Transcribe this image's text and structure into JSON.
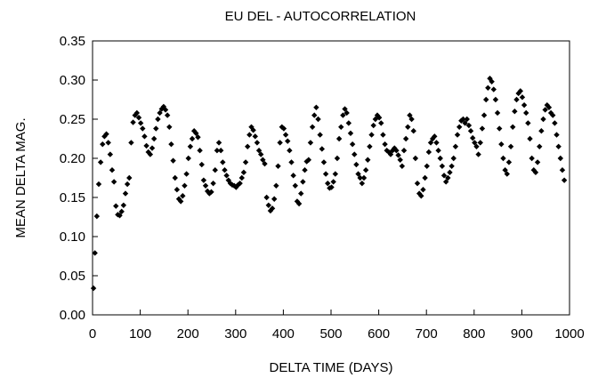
{
  "chart_data": {
    "type": "scatter",
    "title": "EU DEL - AUTOCORRELATION",
    "xlabel": "DELTA TIME (DAYS)",
    "ylabel": "MEAN DELTA MAG.",
    "xlim": [
      0,
      1000
    ],
    "ylim": [
      0,
      0.35
    ],
    "xticks": [
      "0",
      "100",
      "200",
      "300",
      "400",
      "500",
      "600",
      "700",
      "800",
      "900",
      "1000"
    ],
    "yticks": [
      "0.00",
      "0.05",
      "0.10",
      "0.15",
      "0.20",
      "0.25",
      "0.30",
      "0.35"
    ],
    "grid": false,
    "legend": "none",
    "marker": "diamond",
    "color": "#000000",
    "points": [
      [
        2,
        0.034
      ],
      [
        5,
        0.079
      ],
      [
        9,
        0.126
      ],
      [
        13,
        0.167
      ],
      [
        17,
        0.195
      ],
      [
        21,
        0.218
      ],
      [
        25,
        0.228
      ],
      [
        29,
        0.231
      ],
      [
        33,
        0.22
      ],
      [
        37,
        0.205
      ],
      [
        41,
        0.185
      ],
      [
        45,
        0.17
      ],
      [
        49,
        0.139
      ],
      [
        53,
        0.128
      ],
      [
        57,
        0.127
      ],
      [
        61,
        0.132
      ],
      [
        65,
        0.14
      ],
      [
        69,
        0.155
      ],
      [
        73,
        0.167
      ],
      [
        77,
        0.175
      ],
      [
        81,
        0.22
      ],
      [
        85,
        0.246
      ],
      [
        89,
        0.255
      ],
      [
        93,
        0.258
      ],
      [
        97,
        0.252
      ],
      [
        101,
        0.245
      ],
      [
        105,
        0.238
      ],
      [
        109,
        0.228
      ],
      [
        113,
        0.216
      ],
      [
        117,
        0.208
      ],
      [
        121,
        0.205
      ],
      [
        125,
        0.213
      ],
      [
        129,
        0.225
      ],
      [
        133,
        0.238
      ],
      [
        137,
        0.25
      ],
      [
        141,
        0.258
      ],
      [
        145,
        0.263
      ],
      [
        149,
        0.266
      ],
      [
        153,
        0.262
      ],
      [
        157,
        0.255
      ],
      [
        161,
        0.24
      ],
      [
        165,
        0.218
      ],
      [
        169,
        0.197
      ],
      [
        173,
        0.175
      ],
      [
        177,
        0.16
      ],
      [
        181,
        0.148
      ],
      [
        185,
        0.145
      ],
      [
        189,
        0.152
      ],
      [
        193,
        0.165
      ],
      [
        197,
        0.18
      ],
      [
        201,
        0.2
      ],
      [
        205,
        0.215
      ],
      [
        209,
        0.225
      ],
      [
        213,
        0.235
      ],
      [
        217,
        0.232
      ],
      [
        221,
        0.227
      ],
      [
        225,
        0.21
      ],
      [
        229,
        0.192
      ],
      [
        233,
        0.172
      ],
      [
        237,
        0.165
      ],
      [
        241,
        0.158
      ],
      [
        245,
        0.155
      ],
      [
        249,
        0.157
      ],
      [
        253,
        0.168
      ],
      [
        257,
        0.185
      ],
      [
        261,
        0.21
      ],
      [
        265,
        0.22
      ],
      [
        269,
        0.21
      ],
      [
        273,
        0.195
      ],
      [
        277,
        0.185
      ],
      [
        281,
        0.178
      ],
      [
        285,
        0.172
      ],
      [
        289,
        0.168
      ],
      [
        293,
        0.166
      ],
      [
        297,
        0.165
      ],
      [
        301,
        0.163
      ],
      [
        305,
        0.166
      ],
      [
        309,
        0.168
      ],
      [
        313,
        0.175
      ],
      [
        317,
        0.182
      ],
      [
        321,
        0.195
      ],
      [
        325,
        0.215
      ],
      [
        329,
        0.23
      ],
      [
        333,
        0.24
      ],
      [
        337,
        0.236
      ],
      [
        341,
        0.228
      ],
      [
        345,
        0.22
      ],
      [
        349,
        0.21
      ],
      [
        353,
        0.205
      ],
      [
        357,
        0.198
      ],
      [
        361,
        0.193
      ],
      [
        365,
        0.15
      ],
      [
        369,
        0.14
      ],
      [
        373,
        0.133
      ],
      [
        377,
        0.136
      ],
      [
        381,
        0.148
      ],
      [
        385,
        0.165
      ],
      [
        389,
        0.19
      ],
      [
        393,
        0.22
      ],
      [
        397,
        0.24
      ],
      [
        401,
        0.238
      ],
      [
        405,
        0.23
      ],
      [
        409,
        0.222
      ],
      [
        413,
        0.21
      ],
      [
        417,
        0.195
      ],
      [
        421,
        0.178
      ],
      [
        425,
        0.165
      ],
      [
        429,
        0.145
      ],
      [
        433,
        0.142
      ],
      [
        437,
        0.155
      ],
      [
        441,
        0.17
      ],
      [
        445,
        0.185
      ],
      [
        449,
        0.196
      ],
      [
        453,
        0.198
      ],
      [
        457,
        0.22
      ],
      [
        461,
        0.24
      ],
      [
        465,
        0.255
      ],
      [
        469,
        0.265
      ],
      [
        473,
        0.25
      ],
      [
        477,
        0.23
      ],
      [
        481,
        0.212
      ],
      [
        485,
        0.195
      ],
      [
        489,
        0.18
      ],
      [
        493,
        0.168
      ],
      [
        497,
        0.162
      ],
      [
        501,
        0.163
      ],
      [
        505,
        0.17
      ],
      [
        509,
        0.18
      ],
      [
        513,
        0.2
      ],
      [
        517,
        0.225
      ],
      [
        521,
        0.24
      ],
      [
        525,
        0.255
      ],
      [
        529,
        0.263
      ],
      [
        533,
        0.258
      ],
      [
        537,
        0.245
      ],
      [
        541,
        0.232
      ],
      [
        545,
        0.218
      ],
      [
        549,
        0.205
      ],
      [
        553,
        0.192
      ],
      [
        557,
        0.18
      ],
      [
        561,
        0.175
      ],
      [
        565,
        0.168
      ],
      [
        569,
        0.175
      ],
      [
        573,
        0.185
      ],
      [
        577,
        0.198
      ],
      [
        581,
        0.215
      ],
      [
        585,
        0.23
      ],
      [
        589,
        0.242
      ],
      [
        593,
        0.25
      ],
      [
        597,
        0.255
      ],
      [
        601,
        0.252
      ],
      [
        605,
        0.245
      ],
      [
        609,
        0.23
      ],
      [
        613,
        0.218
      ],
      [
        617,
        0.21
      ],
      [
        621,
        0.208
      ],
      [
        625,
        0.205
      ],
      [
        629,
        0.21
      ],
      [
        633,
        0.213
      ],
      [
        637,
        0.21
      ],
      [
        641,
        0.204
      ],
      [
        645,
        0.198
      ],
      [
        649,
        0.19
      ],
      [
        653,
        0.21
      ],
      [
        657,
        0.225
      ],
      [
        661,
        0.24
      ],
      [
        665,
        0.255
      ],
      [
        669,
        0.25
      ],
      [
        673,
        0.235
      ],
      [
        677,
        0.2
      ],
      [
        681,
        0.168
      ],
      [
        685,
        0.155
      ],
      [
        689,
        0.152
      ],
      [
        693,
        0.16
      ],
      [
        697,
        0.175
      ],
      [
        701,
        0.19
      ],
      [
        705,
        0.208
      ],
      [
        709,
        0.22
      ],
      [
        713,
        0.225
      ],
      [
        717,
        0.228
      ],
      [
        721,
        0.22
      ],
      [
        725,
        0.21
      ],
      [
        729,
        0.2
      ],
      [
        733,
        0.19
      ],
      [
        737,
        0.178
      ],
      [
        741,
        0.17
      ],
      [
        745,
        0.175
      ],
      [
        749,
        0.182
      ],
      [
        753,
        0.19
      ],
      [
        757,
        0.2
      ],
      [
        761,
        0.215
      ],
      [
        765,
        0.23
      ],
      [
        769,
        0.24
      ],
      [
        773,
        0.248
      ],
      [
        777,
        0.25
      ],
      [
        781,
        0.245
      ],
      [
        785,
        0.25
      ],
      [
        789,
        0.242
      ],
      [
        793,
        0.235
      ],
      [
        797,
        0.226
      ],
      [
        801,
        0.22
      ],
      [
        805,
        0.215
      ],
      [
        809,
        0.205
      ],
      [
        813,
        0.22
      ],
      [
        817,
        0.238
      ],
      [
        821,
        0.255
      ],
      [
        825,
        0.275
      ],
      [
        829,
        0.29
      ],
      [
        833,
        0.302
      ],
      [
        837,
        0.298
      ],
      [
        841,
        0.288
      ],
      [
        845,
        0.275
      ],
      [
        849,
        0.258
      ],
      [
        853,
        0.238
      ],
      [
        857,
        0.218
      ],
      [
        861,
        0.2
      ],
      [
        865,
        0.185
      ],
      [
        869,
        0.18
      ],
      [
        873,
        0.195
      ],
      [
        877,
        0.215
      ],
      [
        881,
        0.24
      ],
      [
        885,
        0.26
      ],
      [
        889,
        0.275
      ],
      [
        893,
        0.283
      ],
      [
        897,
        0.286
      ],
      [
        901,
        0.278
      ],
      [
        905,
        0.268
      ],
      [
        909,
        0.258
      ],
      [
        913,
        0.245
      ],
      [
        917,
        0.225
      ],
      [
        921,
        0.2
      ],
      [
        925,
        0.185
      ],
      [
        929,
        0.182
      ],
      [
        933,
        0.195
      ],
      [
        937,
        0.215
      ],
      [
        941,
        0.235
      ],
      [
        945,
        0.25
      ],
      [
        949,
        0.262
      ],
      [
        953,
        0.268
      ],
      [
        957,
        0.265
      ],
      [
        961,
        0.258
      ],
      [
        965,
        0.255
      ],
      [
        969,
        0.245
      ],
      [
        973,
        0.23
      ],
      [
        977,
        0.215
      ],
      [
        981,
        0.2
      ],
      [
        985,
        0.185
      ],
      [
        989,
        0.172
      ]
    ]
  }
}
